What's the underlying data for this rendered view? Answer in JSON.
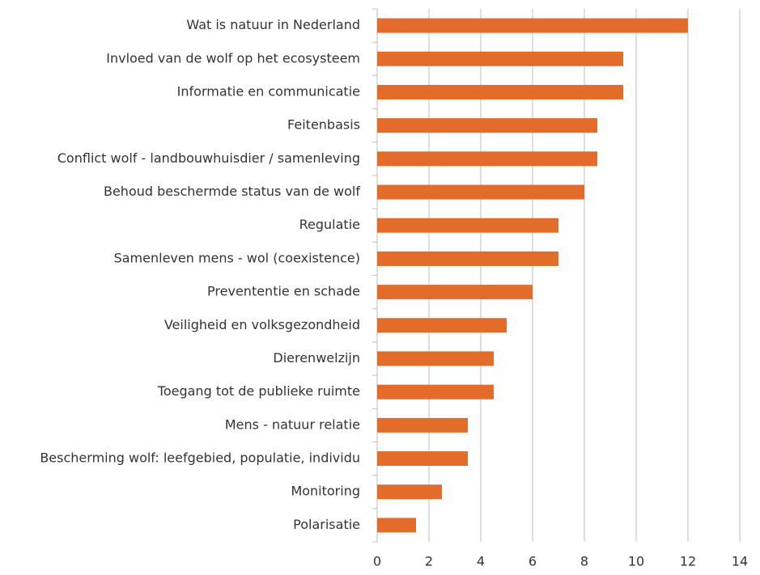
{
  "chart_data": {
    "type": "barh",
    "categories": [
      "Wat is natuur in Nederland",
      "Invloed van de wolf op het ecosysteem",
      "Informatie en communicatie",
      "Feitenbasis",
      "Conflict wolf - landbouwhuisdier / samenleving",
      "Behoud beschermde status van de wolf",
      "Regulatie",
      "Samenleven mens - wol (coexistence)",
      "Prevententie en schade",
      "Veiligheid en volksgezondheid",
      "Dierenwelzijn",
      "Toegang tot de publieke ruimte",
      "Mens - natuur relatie",
      "Bescherming wolf: leefgebied, populatie, individu",
      "Monitoring",
      "Polarisatie"
    ],
    "values": [
      12,
      9.5,
      9.5,
      8.5,
      8.5,
      8,
      7,
      7,
      6,
      5,
      4.5,
      4.5,
      3.5,
      3.5,
      2.5,
      1.5
    ],
    "color": "#e36c2a",
    "xlim": [
      0,
      14
    ],
    "xticks": [
      0,
      2,
      4,
      6,
      8,
      10,
      12,
      14
    ],
    "grid": true
  }
}
